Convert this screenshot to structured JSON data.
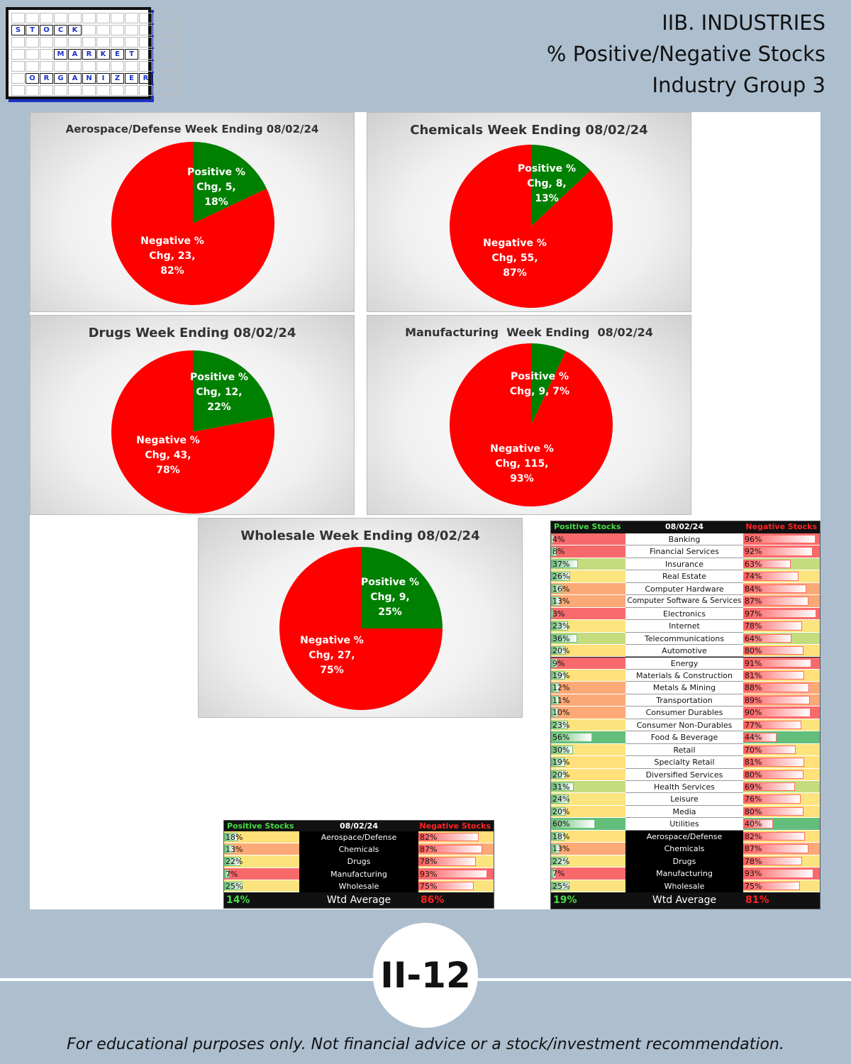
{
  "logo": {
    "rows": [
      {
        "cells": [
          "",
          "",
          "",
          "",
          "",
          "",
          "",
          "",
          "",
          "",
          "",
          ""
        ],
        "on": []
      },
      {
        "cells": [
          "S",
          "T",
          "O",
          "C",
          "K",
          "",
          "",
          "",
          "",
          "",
          "",
          ""
        ],
        "on": [
          0,
          1,
          2,
          3,
          4
        ]
      },
      {
        "cells": [
          "",
          "",
          "",
          "",
          "",
          "",
          "",
          "",
          "",
          "",
          "",
          ""
        ],
        "on": []
      },
      {
        "cells": [
          "",
          "",
          "",
          "M",
          "A",
          "R",
          "K",
          "E",
          "T",
          "",
          "",
          ""
        ],
        "on": [
          3,
          4,
          5,
          6,
          7,
          8
        ]
      },
      {
        "cells": [
          "",
          "",
          "",
          "",
          "",
          "",
          "",
          "",
          "",
          "",
          "",
          ""
        ],
        "on": []
      },
      {
        "cells": [
          "",
          "O",
          "R",
          "G",
          "A",
          "N",
          "I",
          "Z",
          "E",
          "R",
          "",
          ""
        ],
        "on": [
          1,
          2,
          3,
          4,
          5,
          6,
          7,
          8,
          9
        ]
      },
      {
        "cells": [
          "",
          "",
          "",
          "",
          "",
          "",
          "",
          "",
          "",
          "",
          "",
          ""
        ],
        "on": []
      }
    ]
  },
  "header": {
    "line1": "IIB. INDUSTRIES",
    "line2": "% Positive/Negative Stocks",
    "line3": "Industry Group 3"
  },
  "colors": {
    "positive": "#008000",
    "negative": "#ff0000"
  },
  "chart_data": [
    {
      "type": "pie",
      "title": "Aerospace/Defense Week Ending 08/02/24",
      "slices": [
        {
          "name": "Positive % Chg",
          "value": 5,
          "percent": 18
        },
        {
          "name": "Negative % Chg",
          "value": 23,
          "percent": 82
        }
      ],
      "labels": [
        [
          "Positive %",
          "Chg, 5,",
          "18%"
        ],
        [
          "Negative %",
          "Chg, 23,",
          "82%"
        ]
      ]
    },
    {
      "type": "pie",
      "title": "Chemicals Week Ending 08/02/24",
      "slices": [
        {
          "name": "Positive % Chg",
          "value": 8,
          "percent": 13
        },
        {
          "name": "Negative % Chg",
          "value": 55,
          "percent": 87
        }
      ],
      "labels": [
        [
          "Positive %",
          "Chg, 8,",
          "13%"
        ],
        [
          "Negative %",
          "Chg, 55,",
          "87%"
        ]
      ]
    },
    {
      "type": "pie",
      "title": "Drugs Week Ending 08/02/24",
      "slices": [
        {
          "name": "Positive % Chg",
          "value": 12,
          "percent": 22
        },
        {
          "name": "Negative % Chg",
          "value": 43,
          "percent": 78
        }
      ],
      "labels": [
        [
          "Positive %",
          "Chg, 12,",
          "22%"
        ],
        [
          "Negative %",
          "Chg, 43,",
          "78%"
        ]
      ]
    },
    {
      "type": "pie",
      "title": "Manufacturing  Week Ending  08/02/24",
      "slices": [
        {
          "name": "Positive % Chg",
          "value": 9,
          "percent": 7
        },
        {
          "name": "Negative % Chg",
          "value": 115,
          "percent": 93
        }
      ],
      "labels": [
        [
          "Positive %",
          "Chg, 9, 7%"
        ],
        [
          "Negative %",
          "Chg, 115,",
          "93%"
        ]
      ]
    },
    {
      "type": "pie",
      "title": "Wholesale Week Ending 08/02/24",
      "slices": [
        {
          "name": "Positive % Chg",
          "value": 9,
          "percent": 25
        },
        {
          "name": "Negative % Chg",
          "value": 27,
          "percent": 75
        }
      ],
      "labels": [
        [
          "Positive %",
          "Chg, 9,",
          "25%"
        ],
        [
          "Negative %",
          "Chg, 27,",
          "75%"
        ]
      ]
    },
    {
      "type": "table",
      "name": "group-table",
      "header": {
        "pos": "Positive Stocks %",
        "date": "08/02/24",
        "neg": "Negative Stocks %"
      },
      "rows": [
        {
          "label": "Aerospace/Defense",
          "pos": 18,
          "neg": 82
        },
        {
          "label": "Chemicals",
          "pos": 13,
          "neg": 87
        },
        {
          "label": "Drugs",
          "pos": 22,
          "neg": 78
        },
        {
          "label": "Manufacturing",
          "pos": 7,
          "neg": 93
        },
        {
          "label": "Wholesale",
          "pos": 25,
          "neg": 75
        }
      ],
      "average": {
        "pos": "14%",
        "label": "Wtd Average",
        "neg": "86%"
      }
    },
    {
      "type": "table",
      "name": "all-industries-table",
      "header": {
        "pos": "Positive Stocks %",
        "date": "08/02/24",
        "neg": "Negative Stocks %"
      },
      "rows": [
        {
          "label": "Banking",
          "pos": 4,
          "neg": 96
        },
        {
          "label": "Financial Services",
          "pos": 8,
          "neg": 92
        },
        {
          "label": "Insurance",
          "pos": 37,
          "neg": 63
        },
        {
          "label": "Real Estate",
          "pos": 26,
          "neg": 74
        },
        {
          "label": "Computer Hardware",
          "pos": 16,
          "neg": 84
        },
        {
          "label": "Computer Software & Services",
          "pos": 13,
          "neg": 87
        },
        {
          "label": "Electronics",
          "pos": 3,
          "neg": 97
        },
        {
          "label": "Internet",
          "pos": 23,
          "neg": 78
        },
        {
          "label": "Telecommunications",
          "pos": 36,
          "neg": 64
        },
        {
          "label": "Automotive",
          "pos": 20,
          "neg": 80
        },
        {
          "label": "Energy",
          "pos": 9,
          "neg": 91
        },
        {
          "label": "Materials & Construction",
          "pos": 19,
          "neg": 81
        },
        {
          "label": "Metals & Mining",
          "pos": 12,
          "neg": 88
        },
        {
          "label": "Transportation",
          "pos": 11,
          "neg": 89
        },
        {
          "label": "Consumer Durables",
          "pos": 10,
          "neg": 90
        },
        {
          "label": "Consumer Non-Durables",
          "pos": 23,
          "neg": 77
        },
        {
          "label": "Food & Beverage",
          "pos": 56,
          "neg": 44
        },
        {
          "label": "Retail",
          "pos": 30,
          "neg": 70
        },
        {
          "label": "Specialty Retail",
          "pos": 19,
          "neg": 81
        },
        {
          "label": "Diversified Services",
          "pos": 20,
          "neg": 80
        },
        {
          "label": "Health Services",
          "pos": 31,
          "neg": 69
        },
        {
          "label": "Leisure",
          "pos": 24,
          "neg": 76
        },
        {
          "label": "Media",
          "pos": 20,
          "neg": 80
        },
        {
          "label": "Utilities",
          "pos": 60,
          "neg": 40
        },
        {
          "label": "Aerospace/Defense",
          "pos": 18,
          "neg": 82,
          "highlight": true
        },
        {
          "label": "Chemicals",
          "pos": 13,
          "neg": 87,
          "highlight": true
        },
        {
          "label": "Drugs",
          "pos": 22,
          "neg": 78,
          "highlight": true
        },
        {
          "label": "Manufacturing",
          "pos": 7,
          "neg": 93,
          "highlight": true
        },
        {
          "label": "Wholesale",
          "pos": 25,
          "neg": 75,
          "highlight": true
        }
      ],
      "average": {
        "pos": "19%",
        "label": "Wtd Average",
        "neg": "81%"
      }
    }
  ],
  "footer": {
    "page": "II-12",
    "disclaimer": "For educational purposes only. Not financial advice or a stock/investment recommendation."
  }
}
